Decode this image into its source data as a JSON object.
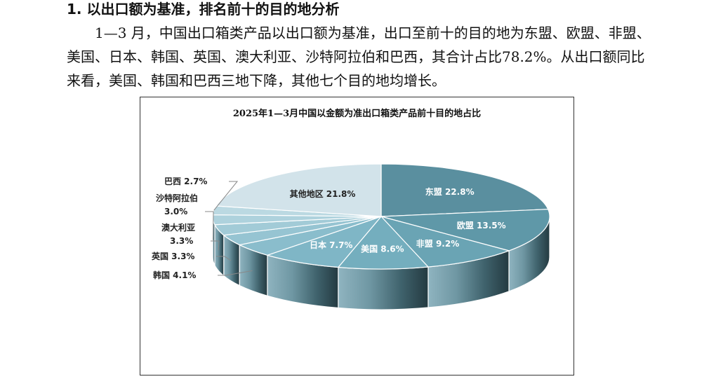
{
  "section": {
    "heading": "1. 以出口额为基准，排名前十的目的地分析",
    "paragraph": "1—3 月，中国出口箱类产品以出口额为基准，出口至前十的目的地为东盟、欧盟、非盟、美国、日本、韩国、英国、澳大利亚、沙特阿拉伯和巴西，其合计占比78.2%。从出口额同比来看，美国、韩国和巴西三地下降，其他七个目的地均增长。"
  },
  "chart_data": {
    "type": "pie",
    "title": "2025年1—3月中国以金额为准出口箱类产品前十目的地占比",
    "unit": "%",
    "slices": [
      {
        "label": "东盟",
        "value": 22.8,
        "value_text": "22.8%",
        "color": "#5a8f9f"
      },
      {
        "label": "欧盟",
        "value": 13.5,
        "value_text": "13.5%",
        "color": "#5f98a8"
      },
      {
        "label": "非盟",
        "value": 9.2,
        "value_text": "9.2%",
        "color": "#6aa4b4"
      },
      {
        "label": "美国",
        "value": 8.6,
        "value_text": "8.6%",
        "color": "#74aebe"
      },
      {
        "label": "日本",
        "value": 7.7,
        "value_text": "7.7%",
        "color": "#7fb6c6"
      },
      {
        "label": "韩国",
        "value": 4.1,
        "value_text": "4.1%",
        "color": "#8abdcc"
      },
      {
        "label": "英国",
        "value": 3.3,
        "value_text": "3.3%",
        "color": "#96c4d2"
      },
      {
        "label": "澳大利亚",
        "value": 3.3,
        "value_text": "3.3%",
        "color": "#a2cbd7"
      },
      {
        "label": "沙特阿拉伯",
        "value": 3.0,
        "value_text": "3.0%",
        "color": "#aed2dd"
      },
      {
        "label": "巴西",
        "value": 2.7,
        "value_text": "2.7%",
        "color": "#bbd9e2"
      },
      {
        "label": "其他地区",
        "value": 21.8,
        "value_text": "21.8%",
        "color": "#d2e3ea"
      }
    ]
  }
}
